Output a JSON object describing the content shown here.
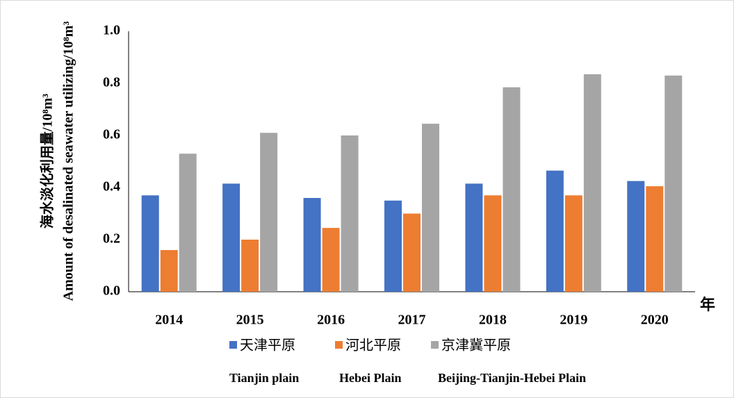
{
  "chart_data": {
    "type": "bar",
    "y_axis_label": [
      "海水淡化利用量/10⁸m³",
      "Amount of desalinated seawater utilizing/10⁸m³"
    ],
    "x_axis_label": "年",
    "categories": [
      "2014",
      "2015",
      "2016",
      "2017",
      "2018",
      "2019",
      "2020"
    ],
    "series": [
      {
        "name": "天津平原",
        "color": "#4472c4",
        "values": [
          0.37,
          0.415,
          0.36,
          0.35,
          0.415,
          0.465,
          0.425
        ]
      },
      {
        "name": "河北平原",
        "color": "#ed7d31",
        "values": [
          0.16,
          0.2,
          0.245,
          0.3,
          0.37,
          0.37,
          0.405
        ]
      },
      {
        "name": "京津冀平原",
        "color": "#a5a5a5",
        "values": [
          0.53,
          0.61,
          0.6,
          0.645,
          0.785,
          0.835,
          0.83
        ]
      }
    ],
    "legend_english": [
      "Tianjin plain",
      "Hebei Plain",
      "Beijing-Tianjin-Hebei Plain"
    ],
    "ylim": [
      0,
      1
    ],
    "yticks": [
      {
        "value": 0,
        "label": "0.0"
      },
      0.2,
      0.4,
      0.6,
      0.8,
      {
        "value": 1,
        "label": "1.0"
      }
    ],
    "grid": false
  }
}
